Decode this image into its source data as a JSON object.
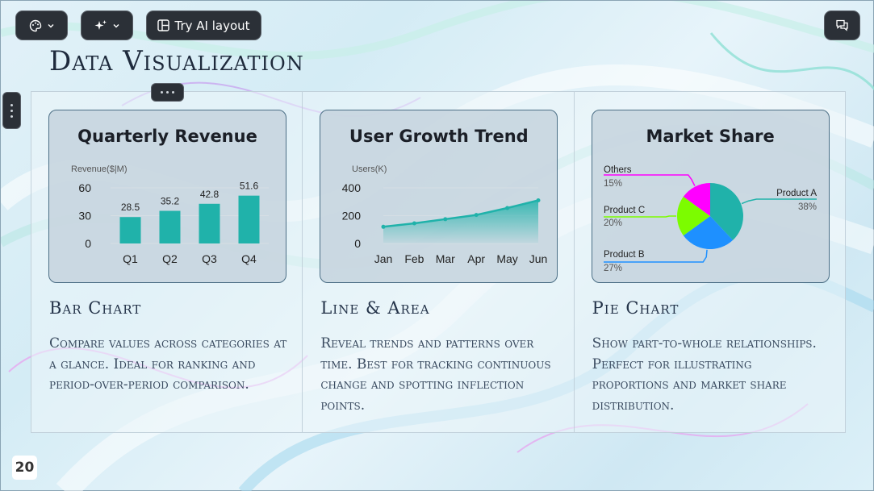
{
  "toolbar": {
    "ai_layout_label": "Try AI layout",
    "theme_icon": "palette-icon",
    "magic_icon": "sparkles-icon",
    "comment_icon": "chat-icon"
  },
  "slide": {
    "title": "Data Visualization",
    "page_number": "20"
  },
  "columns": [
    {
      "card_title": "Quarterly Revenue",
      "title": "Bar Chart",
      "description": "Compare values across categories at a glance. Ideal for ranking and period-over-period comparison."
    },
    {
      "card_title": "User Growth Trend",
      "title": "Line & Area",
      "description": "Reveal trends and patterns over time. Best for tracking continuous change and spotting inflection points."
    },
    {
      "card_title": "Market Share",
      "title": "Pie Chart",
      "description": "Show part-to-whole relationships. Perfect for illustrating proportions and market share distribution."
    }
  ],
  "chart_data": [
    {
      "type": "bar",
      "title": "Quarterly Revenue",
      "ylabel": "Revenue($|M)",
      "categories": [
        "Q1",
        "Q2",
        "Q3",
        "Q4"
      ],
      "values": [
        28.5,
        35.2,
        42.8,
        51.6
      ],
      "ylim": [
        0,
        60
      ],
      "yticks": [
        0,
        30,
        60
      ],
      "color": "#20b2aa"
    },
    {
      "type": "area",
      "title": "User Growth Trend",
      "ylabel": "Users(K)",
      "categories": [
        "Jan",
        "Feb",
        "Mar",
        "Apr",
        "May",
        "Jun"
      ],
      "values": [
        120,
        145,
        175,
        205,
        255,
        310
      ],
      "ylim": [
        0,
        400
      ],
      "yticks": [
        0,
        200,
        400
      ],
      "color": "#20b2aa"
    },
    {
      "type": "pie",
      "title": "Market Share",
      "slices": [
        {
          "name": "Product A",
          "value": 38,
          "label": "38%",
          "color": "#20b2aa"
        },
        {
          "name": "Product B",
          "value": 27,
          "label": "27%",
          "color": "#1e90ff"
        },
        {
          "name": "Product C",
          "value": 20,
          "label": "20%",
          "color": "#7cfc00"
        },
        {
          "name": "Others",
          "value": 15,
          "label": "15%",
          "color": "#ff00ff"
        }
      ]
    }
  ]
}
